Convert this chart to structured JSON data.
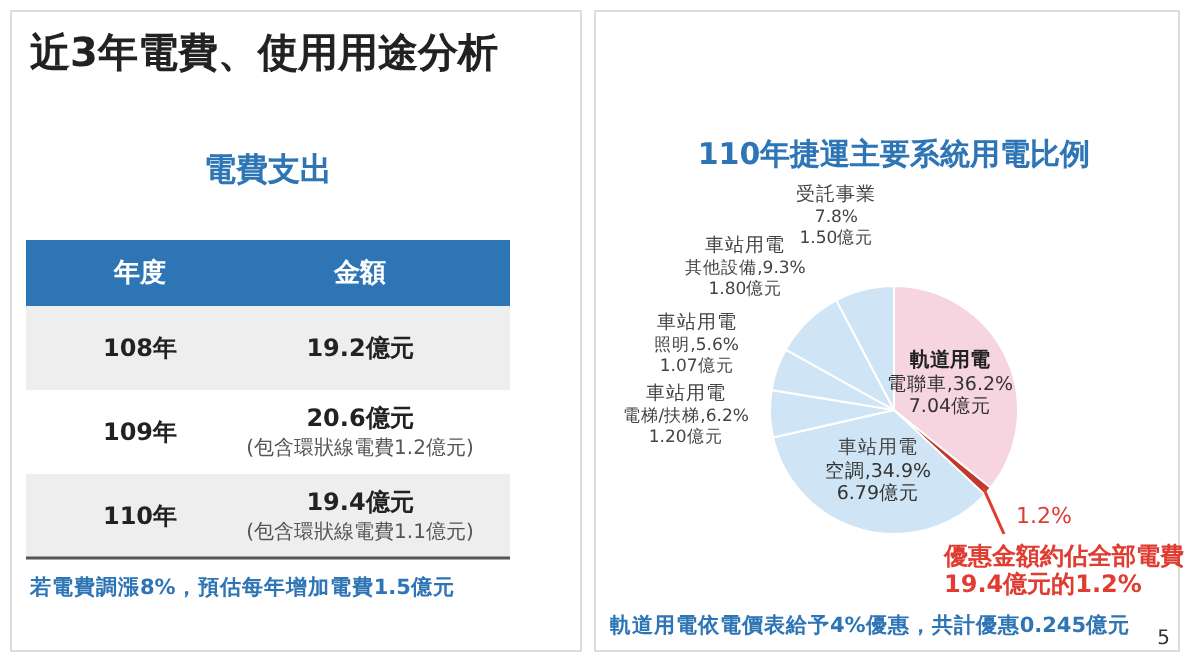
{
  "chart_data": [
    {
      "type": "other",
      "title": "近3年電費、使用用途分析",
      "subtitle": "電費支出",
      "annotations": [
        "年度",
        "金額",
        "108年",
        "19.2億元",
        "109年",
        "20.6億元\n(包含環狀線電費1.2億元)",
        "110年",
        "19.4億元\n(包含環狀線電費1.1億元)",
        "若電費調漲8%，預估每年增加電費1.5億元"
      ]
    },
    {
      "type": "pie",
      "title": "110年捷運主要系統用電比例",
      "categories": [
        "軌道用電",
        null,
        "車站用電",
        "車站用電",
        "車站用電",
        "車站用電",
        "受託事業"
      ],
      "value_labels": [
        "電聯車,36.2%\n7.04億元",
        "1.2%",
        "空調,34.9%\n6.79億元",
        "電梯/扶梯,6.2%\n1.20億元",
        "照明,5.6%\n1.07億元",
        "其他設備,9.3%\n1.80億元",
        "7.8%\n1.50億元"
      ],
      "values": [
        36.2,
        1.2,
        34.9,
        6.2,
        5.6,
        9.3,
        7.8
      ],
      "colors": [
        "#f6d5e1",
        "#c0392b",
        "#cfe5f5",
        "#cfe5f5",
        "#cfe5f5",
        "#cfe5f5",
        "#cfe5f5"
      ],
      "annotations": [
        "優惠金額約佔全部電費\n19.4億元的1.2%",
        "軌道用電依電價表給予4%優惠，共計優惠0.245億元",
        "5"
      ]
    }
  ]
}
